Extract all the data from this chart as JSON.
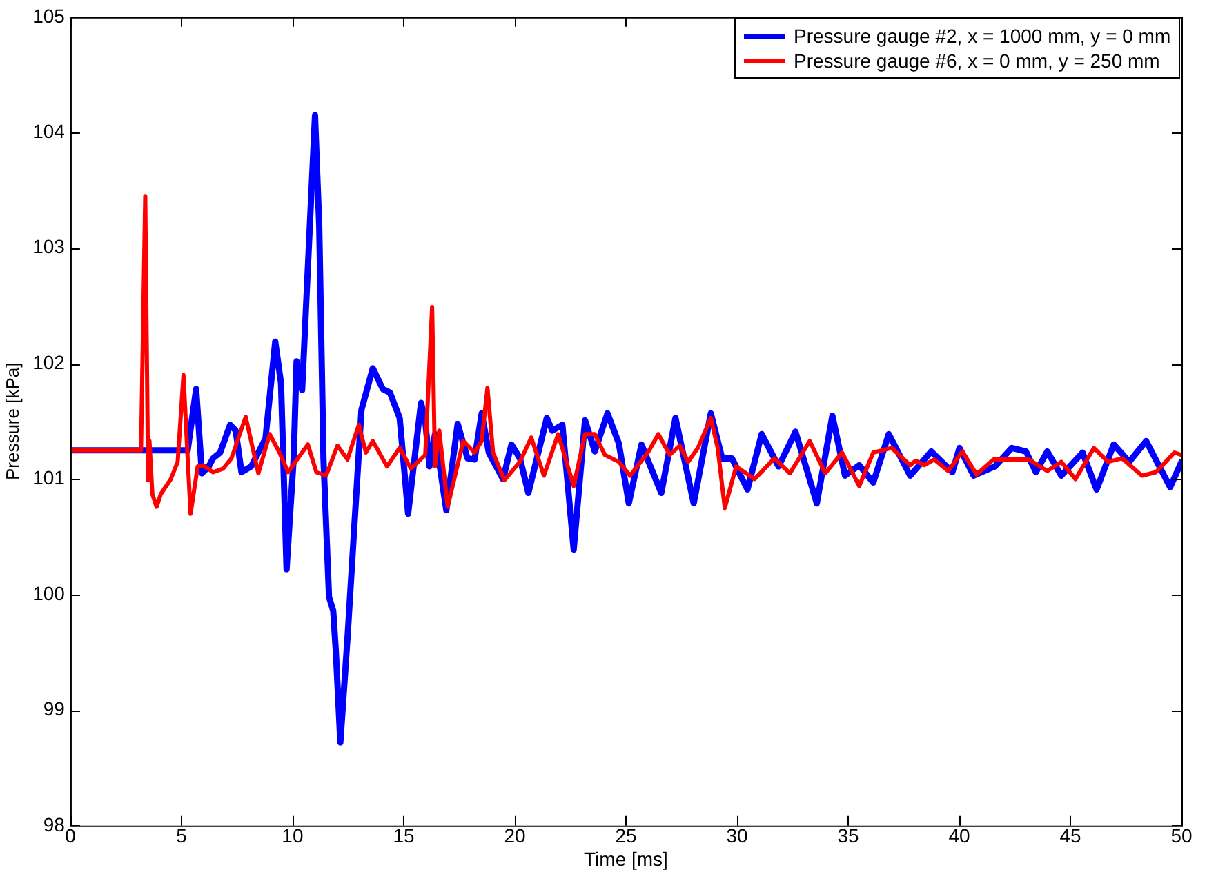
{
  "chart_data": {
    "type": "line",
    "xlabel": "Time [ms]",
    "ylabel": "Pressure [kPa]",
    "xlim": [
      0,
      50
    ],
    "xticks": [
      0,
      5,
      10,
      15,
      20,
      25,
      30,
      35,
      40,
      45,
      50
    ],
    "ylim": [
      98,
      105
    ],
    "yticks": [
      98,
      99,
      100,
      101,
      102,
      103,
      104,
      105
    ],
    "grid": false,
    "legend": "top right",
    "marker": "none",
    "line_style": "solid",
    "series": [
      {
        "name": "Pressure gauge #2, x = 1000 mm, y = 0 mm",
        "color": "#0000ff",
        "x": [
          0,
          5.28,
          5.66,
          5.92,
          6.23,
          6.42,
          6.74,
          7.19,
          7.44,
          7.7,
          8.14,
          8.78,
          9.22,
          9.48,
          9.73,
          10.05,
          10.18,
          10.43,
          11.01,
          11.2,
          11.39,
          11.64,
          11.83,
          11.95,
          12.15,
          12.47,
          13.1,
          13.61,
          14.06,
          14.38,
          14.82,
          15.2,
          15.78,
          15.97,
          16.16,
          16.41,
          16.92,
          17.43,
          17.87,
          18.19,
          18.51,
          18.83,
          19.47,
          19.85,
          20.23,
          20.61,
          21.44,
          21.69,
          22.14,
          22.65,
          23.16,
          23.6,
          24.17,
          24.68,
          25.13,
          25.7,
          26.59,
          27.23,
          28.05,
          28.82,
          29.33,
          29.77,
          30.47,
          31.11,
          31.87,
          32.63,
          33.59,
          34.29,
          34.86,
          35.5,
          36.13,
          36.83,
          37.79,
          38.74,
          39.69,
          40.01,
          40.65,
          41.6,
          42.37,
          43,
          43.45,
          43.96,
          44.59,
          45.55,
          46.18,
          46.95,
          47.65,
          48.41,
          49.49,
          50
        ],
        "values": [
          101.25,
          101.25,
          101.78,
          101.05,
          101.11,
          101.18,
          101.23,
          101.47,
          101.42,
          101.06,
          101.11,
          101.35,
          102.19,
          101.83,
          100.22,
          101.18,
          102.02,
          101.77,
          104.15,
          103.19,
          101.18,
          99.98,
          99.86,
          99.5,
          98.72,
          99.62,
          101.6,
          101.96,
          101.78,
          101.75,
          101.53,
          100.7,
          101.66,
          101.51,
          101.11,
          101.39,
          100.73,
          101.48,
          101.18,
          101.17,
          101.57,
          101.23,
          101,
          101.3,
          101.18,
          100.88,
          101.53,
          101.42,
          101.47,
          100.39,
          101.51,
          101.24,
          101.57,
          101.31,
          100.79,
          101.3,
          100.88,
          101.53,
          100.79,
          101.57,
          101.18,
          101.18,
          100.91,
          101.39,
          101.11,
          101.41,
          100.79,
          101.55,
          101.03,
          101.12,
          100.97,
          101.39,
          101.03,
          101.24,
          101.06,
          101.27,
          101.03,
          101.11,
          101.27,
          101.24,
          101.06,
          101.24,
          101.03,
          101.23,
          100.91,
          101.3,
          101.15,
          101.33,
          100.93,
          101.15
        ]
      },
      {
        "name": "Pressure gauge #6, x = 0 mm, y = 250 mm",
        "color": "#ff0000",
        "x": [
          0,
          3.18,
          3.37,
          3.5,
          3.56,
          3.69,
          3.88,
          4.07,
          4.52,
          4.83,
          5.09,
          5.28,
          5.41,
          5.73,
          5.98,
          6.42,
          6.87,
          7.25,
          7.89,
          8.46,
          8.97,
          9.41,
          9.8,
          10.24,
          10.69,
          11.07,
          11.51,
          12.02,
          12.47,
          12.98,
          13.3,
          13.61,
          14.25,
          14.82,
          15.33,
          15.97,
          16.28,
          16.41,
          16.6,
          16.98,
          17.68,
          18.19,
          18.51,
          18.77,
          19.02,
          19.53,
          20.23,
          20.74,
          21.31,
          21.95,
          22.65,
          23.16,
          23.6,
          24.05,
          24.68,
          25.19,
          26.02,
          26.46,
          26.97,
          27.42,
          27.8,
          28.24,
          28.82,
          29.13,
          29.45,
          29.96,
          30.79,
          31.68,
          32.38,
          33.27,
          33.97,
          34.73,
          35.5,
          36.13,
          36.96,
          37.79,
          38.04,
          38.42,
          38.87,
          39.5,
          40.14,
          40.78,
          41.54,
          43.13,
          43.96,
          44.59,
          45.23,
          46.06,
          46.69,
          47.33,
          48.22,
          48.85,
          49.68,
          50
        ],
        "values": [
          101.25,
          101.25,
          103.45,
          100.99,
          101.33,
          100.87,
          100.76,
          100.87,
          101,
          101.15,
          101.9,
          101.18,
          100.7,
          101.11,
          101.12,
          101.06,
          101.09,
          101.18,
          101.54,
          101.05,
          101.39,
          101.23,
          101.06,
          101.18,
          101.3,
          101.06,
          101.03,
          101.29,
          101.17,
          101.47,
          101.23,
          101.33,
          101.11,
          101.27,
          101.09,
          101.21,
          102.49,
          101.11,
          101.42,
          100.76,
          101.33,
          101.23,
          101.33,
          101.79,
          101.23,
          100.99,
          101.15,
          101.36,
          101.03,
          101.39,
          100.94,
          101.39,
          101.39,
          101.21,
          101.15,
          101.03,
          101.24,
          101.39,
          101.21,
          101.29,
          101.15,
          101.27,
          101.53,
          101.27,
          100.75,
          101.11,
          101,
          101.18,
          101.05,
          101.33,
          101.05,
          101.23,
          100.94,
          101.23,
          101.27,
          101.12,
          101.16,
          101.12,
          101.17,
          101.07,
          101.24,
          101.04,
          101.17,
          101.17,
          101.07,
          101.15,
          101,
          101.27,
          101.15,
          101.18,
          101.03,
          101.06,
          101.23,
          101.21
        ]
      }
    ]
  }
}
